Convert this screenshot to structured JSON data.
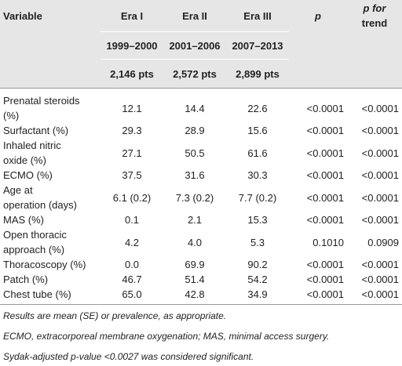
{
  "table": {
    "header": {
      "variable": "Variable",
      "eras": [
        "Era I",
        "Era II",
        "Era III"
      ],
      "p": "p",
      "trend": [
        "p for",
        "trend"
      ],
      "years": [
        "1999–2000",
        "2001–2006",
        "2007–2013"
      ],
      "patients": [
        "2,146 pts",
        "2,572 pts",
        "2,899 pts"
      ]
    },
    "rows": [
      [
        [
          "Prenatal steroids (%)"
        ],
        "12.1",
        "14.4",
        "22.6",
        "<0.0001",
        "<0.0001"
      ],
      [
        [
          "Surfactant (%)"
        ],
        "29.3",
        "28.9",
        "15.6",
        "<0.0001",
        "<0.0001"
      ],
      [
        [
          "Inhaled nitric",
          "oxide (%)"
        ],
        "27.1",
        "50.5",
        "61.6",
        "<0.0001",
        "<0.0001"
      ],
      [
        [
          "ECMO (%)"
        ],
        "37.5",
        "31.6",
        "30.3",
        "<0.0001",
        "<0.0001"
      ],
      [
        [
          "Age at",
          "operation (days)"
        ],
        "6.1 (0.2)",
        "7.3 (0.2)",
        "7.7 (0.2)",
        "<0.0001",
        "<0.0001"
      ],
      [
        [
          "MAS (%)"
        ],
        "0.1",
        "2.1",
        "15.3",
        "<0.0001",
        "<0.0001"
      ],
      [
        [
          "Open thoracic",
          "approach (%)"
        ],
        "4.2",
        "4.0",
        "5.3",
        "0.1010",
        "0.0909"
      ],
      [
        [
          "Thoracoscopy (%)"
        ],
        "0.0",
        "69.9",
        "90.2",
        "<0.0001",
        "<0.0001"
      ],
      [
        [
          "Patch (%)"
        ],
        "46.7",
        "51.4",
        "54.2",
        "<0.0001",
        "<0.0001"
      ],
      [
        [
          "Chest tube (%)"
        ],
        "65.0",
        "42.8",
        "34.9",
        "<0.0001",
        "<0.0001"
      ]
    ],
    "footnotes": [
      "Results are mean (SE) or prevalence, as appropriate.",
      "ECMO, extracorporeal membrane oxygenation; MAS, minimal access surgery.",
      "Sydak-adjusted p-value <0.0027 was considered significant."
    ]
  }
}
